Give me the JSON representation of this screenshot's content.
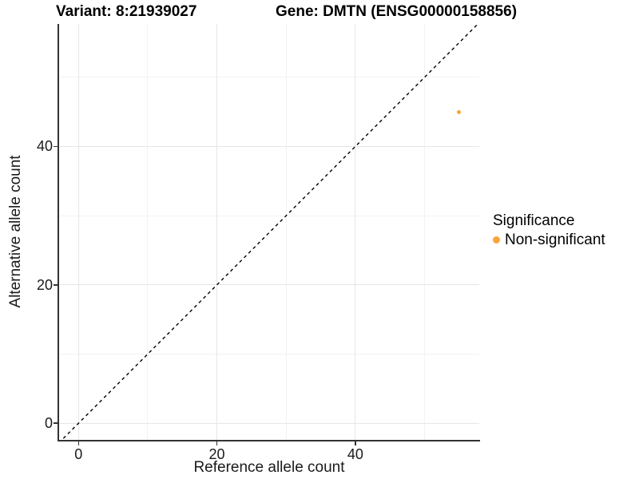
{
  "titles": {
    "variant": "Variant: 8:21939027",
    "gene": "Gene: DMTN (ENSG00000158856)"
  },
  "axes": {
    "x": {
      "label": "Reference allele count"
    },
    "y": {
      "label": "Alternative allele count"
    }
  },
  "legend": {
    "title": "Significance",
    "items": [
      {
        "label": "Non-significant",
        "color": "#FAA43A"
      }
    ]
  },
  "colors": {
    "axis": "#333333",
    "tick": "#333333",
    "grid_major": "#E6E6E6",
    "grid_minor": "#F2F2F2",
    "identity_line": "#000000",
    "background": "#FFFFFF"
  },
  "chart_data": {
    "type": "scatter",
    "title": "Variant: 8:21939027 | Gene: DMTN (ENSG00000158856)",
    "xlabel": "Reference allele count",
    "ylabel": "Alternative allele count",
    "xlim": [
      -2.8,
      57.9
    ],
    "ylim": [
      -2.4,
      57.7
    ],
    "x_ticks": [
      0,
      20,
      40
    ],
    "y_ticks": [
      0,
      20,
      40
    ],
    "x_minor_ticks": [
      10,
      30,
      50
    ],
    "y_minor_ticks": [
      10,
      30,
      50
    ],
    "grid": true,
    "legend_position": "right",
    "reference_line": {
      "style": "dashed",
      "slope": 1,
      "intercept": 0,
      "color": "#000000"
    },
    "series": [
      {
        "name": "Non-significant",
        "color": "#FAA43A",
        "points": [
          {
            "x": 55,
            "y": 45
          }
        ]
      }
    ]
  }
}
